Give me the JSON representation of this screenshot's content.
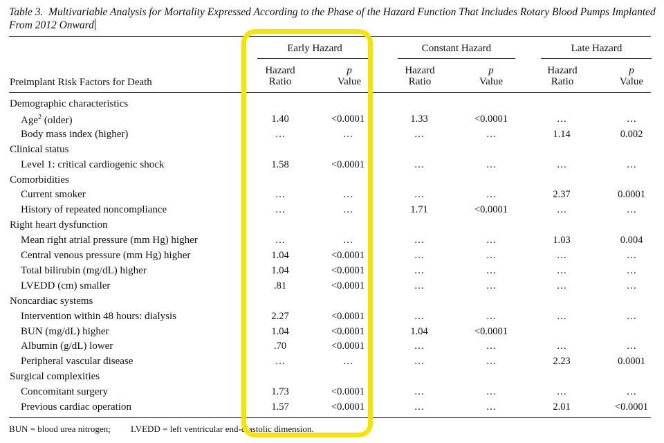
{
  "table": {
    "title_label": "Table 3.",
    "title_text": "Multivariable Analysis for Mortality Expressed According to the Phase of the Hazard Function That Includes Rotary Blood Pumps Implanted From 2012 Onward",
    "groups": [
      "Early Hazard",
      "Constant Hazard",
      "Late Hazard"
    ],
    "risk_factor_header": "Preimplant Risk Factors for Death",
    "hr_header": [
      "Hazard",
      "Ratio"
    ],
    "p_header": [
      "p",
      "Value"
    ],
    "rows": [
      {
        "type": "category",
        "label": "Demographic characteristics"
      },
      {
        "type": "item",
        "label": "Age",
        "sup": "2",
        "suffix": " (older)",
        "values": [
          "1.40",
          "<0.0001",
          "1.33",
          "<0.0001",
          "…",
          "…"
        ]
      },
      {
        "type": "item",
        "label": "Body mass index (higher)",
        "values": [
          "…",
          "…",
          "…",
          "…",
          "1.14",
          "0.002"
        ]
      },
      {
        "type": "category",
        "label": "Clinical status"
      },
      {
        "type": "item",
        "label": "Level 1: critical cardiogenic shock",
        "values": [
          "1.58",
          "<0.0001",
          "…",
          "…",
          "…",
          "…"
        ]
      },
      {
        "type": "category",
        "label": "Comorbidities"
      },
      {
        "type": "item",
        "label": "Current smoker",
        "values": [
          "…",
          "…",
          "…",
          "…",
          "2.37",
          "0.0001"
        ]
      },
      {
        "type": "item",
        "label": "History of repeated noncompliance",
        "values": [
          "…",
          "…",
          "1.71",
          "<0.0001",
          "…",
          "…"
        ]
      },
      {
        "type": "category",
        "label": "Right heart dysfunction"
      },
      {
        "type": "item",
        "label": "Mean right atrial pressure (mm Hg) higher",
        "values": [
          "…",
          "…",
          "…",
          "…",
          "1.03",
          "0.004"
        ]
      },
      {
        "type": "item",
        "label": "Central venous pressure (mm Hg) higher",
        "values": [
          "1.04",
          "<0.0001",
          "…",
          "…",
          "…",
          "…"
        ]
      },
      {
        "type": "item",
        "label": "Total bilirubin (mg/dL) higher",
        "values": [
          "1.04",
          "<0.0001",
          "…",
          "…",
          "…",
          "…"
        ]
      },
      {
        "type": "item",
        "label": "LVEDD (cm) smaller",
        "values": [
          ".81",
          "<0.0001",
          "…",
          "…",
          "…",
          "…"
        ]
      },
      {
        "type": "category",
        "label": "Noncardiac systems"
      },
      {
        "type": "item",
        "label": "Intervention within 48 hours: dialysis",
        "values": [
          "2.27",
          "<0.0001",
          "…",
          "…",
          "…",
          "…"
        ]
      },
      {
        "type": "item",
        "label": "BUN (mg/dL) higher",
        "values": [
          "1.04",
          "<0.0001",
          "1.04",
          "<0.0001",
          "",
          ""
        ]
      },
      {
        "type": "item",
        "label": "Albumin (g/dL) lower",
        "values": [
          ".70",
          "<0.0001",
          "…",
          "…",
          "…",
          "…"
        ]
      },
      {
        "type": "item",
        "label": "Peripheral vascular disease",
        "values": [
          "…",
          "…",
          "…",
          "…",
          "2.23",
          "0.0001"
        ]
      },
      {
        "type": "category",
        "label": "Surgical complexities"
      },
      {
        "type": "item",
        "label": "Concomitant surgery",
        "values": [
          "1.73",
          "<0.0001",
          "…",
          "…",
          "…",
          "…"
        ]
      },
      {
        "type": "item",
        "label": "Previous cardiac operation",
        "values": [
          "1.57",
          "<0.0001",
          "…",
          "…",
          "2.01",
          "<0.0001"
        ]
      }
    ],
    "footnotes": [
      "BUN = blood urea nitrogen;",
      "LVEDD = left ventricular end-diastolic dimension."
    ]
  },
  "annotation": {
    "color": "#f5e400"
  }
}
